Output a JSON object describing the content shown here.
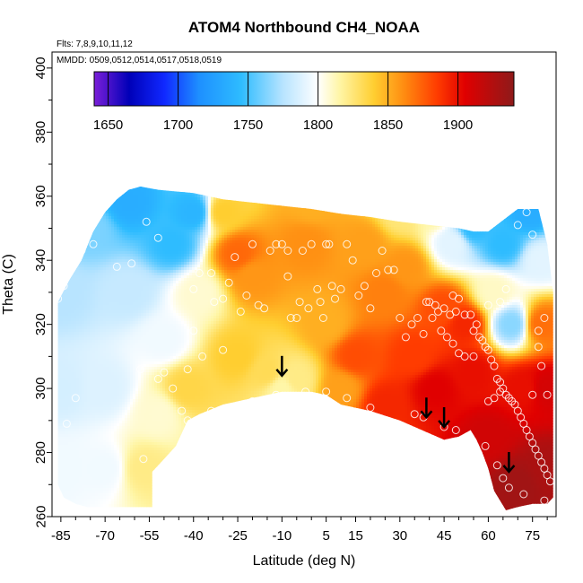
{
  "chart_data": {
    "type": "heatmap",
    "title": "ATOM4 Northbound CH4_NOAA",
    "annotations": {
      "flights": "Flts: 7,8,9,10,11,12",
      "dates": "MMDD: 0509,0512,0514,0517,0518,0519"
    },
    "xlabel": "Latitude (deg N)",
    "ylabel": "Theta (C)",
    "xlim": [
      -88,
      83
    ],
    "ylim": [
      260,
      405
    ],
    "xticks": [
      -85,
      -70,
      -55,
      -40,
      -25,
      -10,
      5,
      15,
      30,
      45,
      60,
      75
    ],
    "yticks": [
      260,
      280,
      300,
      320,
      340,
      360,
      380,
      400
    ],
    "colorbar": {
      "range": [
        1640,
        1940
      ],
      "ticks": [
        1650,
        1700,
        1750,
        1800,
        1850,
        1900
      ],
      "stops": [
        {
          "v": 1640,
          "color": "#7b1fd8"
        },
        {
          "v": 1665,
          "color": "#0000b8"
        },
        {
          "v": 1690,
          "color": "#1028ff"
        },
        {
          "v": 1715,
          "color": "#1e90ff"
        },
        {
          "v": 1745,
          "color": "#2ebcff"
        },
        {
          "v": 1775,
          "color": "#b8e4ff"
        },
        {
          "v": 1800,
          "color": "#ffffff"
        },
        {
          "v": 1815,
          "color": "#fff6a8"
        },
        {
          "v": 1840,
          "color": "#ffce30"
        },
        {
          "v": 1862,
          "color": "#ff8a10"
        },
        {
          "v": 1885,
          "color": "#ff3c00"
        },
        {
          "v": 1905,
          "color": "#e00000"
        },
        {
          "v": 1940,
          "color": "#8e1a1a"
        }
      ]
    },
    "field_anchors": [
      {
        "lat": -85,
        "theta": 275,
        "ch4": 1795
      },
      {
        "lat": -85,
        "theta": 300,
        "ch4": 1785
      },
      {
        "lat": -85,
        "theta": 330,
        "ch4": 1775
      },
      {
        "lat": -75,
        "theta": 350,
        "ch4": 1762
      },
      {
        "lat": -62,
        "theta": 358,
        "ch4": 1735
      },
      {
        "lat": -62,
        "theta": 330,
        "ch4": 1780
      },
      {
        "lat": -70,
        "theta": 300,
        "ch4": 1788
      },
      {
        "lat": -70,
        "theta": 275,
        "ch4": 1795
      },
      {
        "lat": -57,
        "theta": 275,
        "ch4": 1822
      },
      {
        "lat": -52,
        "theta": 292,
        "ch4": 1808
      },
      {
        "lat": -50,
        "theta": 315,
        "ch4": 1795
      },
      {
        "lat": -47,
        "theta": 345,
        "ch4": 1745
      },
      {
        "lat": -40,
        "theta": 355,
        "ch4": 1740
      },
      {
        "lat": -42,
        "theta": 300,
        "ch4": 1835
      },
      {
        "lat": -38,
        "theta": 330,
        "ch4": 1808
      },
      {
        "lat": -30,
        "theta": 355,
        "ch4": 1840
      },
      {
        "lat": -25,
        "theta": 342,
        "ch4": 1872
      },
      {
        "lat": -20,
        "theta": 335,
        "ch4": 1858
      },
      {
        "lat": -25,
        "theta": 310,
        "ch4": 1840
      },
      {
        "lat": -15,
        "theta": 305,
        "ch4": 1832
      },
      {
        "lat": -10,
        "theta": 300,
        "ch4": 1815
      },
      {
        "lat": -5,
        "theta": 303,
        "ch4": 1822
      },
      {
        "lat": -2,
        "theta": 345,
        "ch4": 1860
      },
      {
        "lat": 0,
        "theta": 358,
        "ch4": 1850
      },
      {
        "lat": 5,
        "theta": 320,
        "ch4": 1850
      },
      {
        "lat": 10,
        "theta": 300,
        "ch4": 1855
      },
      {
        "lat": 15,
        "theta": 310,
        "ch4": 1880
      },
      {
        "lat": 18,
        "theta": 345,
        "ch4": 1855
      },
      {
        "lat": 25,
        "theta": 330,
        "ch4": 1865
      },
      {
        "lat": 25,
        "theta": 295,
        "ch4": 1892
      },
      {
        "lat": 30,
        "theta": 355,
        "ch4": 1825
      },
      {
        "lat": 32,
        "theta": 338,
        "ch4": 1858
      },
      {
        "lat": 35,
        "theta": 310,
        "ch4": 1885
      },
      {
        "lat": 42,
        "theta": 300,
        "ch4": 1905
      },
      {
        "lat": 45,
        "theta": 325,
        "ch4": 1880
      },
      {
        "lat": 42,
        "theta": 355,
        "ch4": 1815
      },
      {
        "lat": 48,
        "theta": 345,
        "ch4": 1790
      },
      {
        "lat": 52,
        "theta": 320,
        "ch4": 1892
      },
      {
        "lat": 55,
        "theta": 350,
        "ch4": 1745
      },
      {
        "lat": 55,
        "theta": 305,
        "ch4": 1900
      },
      {
        "lat": 60,
        "theta": 285,
        "ch4": 1912
      },
      {
        "lat": 62,
        "theta": 330,
        "ch4": 1810
      },
      {
        "lat": 65,
        "theta": 345,
        "ch4": 1745
      },
      {
        "lat": 68,
        "theta": 320,
        "ch4": 1765
      },
      {
        "lat": 72,
        "theta": 300,
        "ch4": 1900
      },
      {
        "lat": 70,
        "theta": 270,
        "ch4": 1932
      },
      {
        "lat": 78,
        "theta": 340,
        "ch4": 1790
      },
      {
        "lat": 78,
        "theta": 320,
        "ch4": 1870
      },
      {
        "lat": 80,
        "theta": 300,
        "ch4": 1910
      },
      {
        "lat": 80,
        "theta": 275,
        "ch4": 1928
      },
      {
        "lat": 74,
        "theta": 355,
        "ch4": 1735
      }
    ],
    "envelope": {
      "top": [
        [
          -86,
          327
        ],
        [
          -82,
          334
        ],
        [
          -78,
          340
        ],
        [
          -74,
          349
        ],
        [
          -70,
          355
        ],
        [
          -66,
          359
        ],
        [
          -62,
          362
        ],
        [
          -58,
          363
        ],
        [
          -52,
          362
        ],
        [
          -40,
          361
        ],
        [
          -30,
          359
        ],
        [
          -20,
          358
        ],
        [
          -10,
          357
        ],
        [
          0,
          356
        ],
        [
          10,
          354.5
        ],
        [
          20,
          353.5
        ],
        [
          30,
          352
        ],
        [
          40,
          351
        ],
        [
          50,
          350
        ],
        [
          55,
          349
        ],
        [
          60,
          349
        ],
        [
          70,
          356
        ],
        [
          77,
          356
        ],
        [
          80,
          345
        ],
        [
          82,
          330
        ]
      ],
      "bottom": [
        [
          -86,
          270
        ],
        [
          -84,
          266
        ],
        [
          -80,
          264
        ],
        [
          -76,
          263
        ],
        [
          -70,
          263
        ],
        [
          -60,
          263
        ],
        [
          -54,
          263
        ],
        [
          -54,
          274
        ],
        [
          -50,
          278
        ],
        [
          -46,
          282
        ],
        [
          -42,
          290
        ],
        [
          -38,
          292
        ],
        [
          -30,
          295
        ],
        [
          -20,
          297
        ],
        [
          -10,
          299
        ],
        [
          0,
          299
        ],
        [
          5,
          298
        ],
        [
          10,
          295
        ],
        [
          20,
          293
        ],
        [
          30,
          290
        ],
        [
          40,
          286
        ],
        [
          45,
          284
        ],
        [
          50,
          285
        ],
        [
          54,
          287
        ],
        [
          56,
          284
        ],
        [
          58,
          280
        ],
        [
          60,
          275
        ],
        [
          62,
          268
        ],
        [
          66,
          262
        ],
        [
          70,
          263
        ],
        [
          75,
          264
        ],
        [
          80,
          264
        ],
        [
          82,
          266
        ]
      ]
    },
    "arrows": [
      {
        "lat": -10,
        "theta": 304
      },
      {
        "lat": 39,
        "theta": 291
      },
      {
        "lat": 45,
        "theta": 288
      },
      {
        "lat": 67,
        "theta": 274
      }
    ],
    "observations": [
      [
        -86,
        328
      ],
      [
        -84,
        332
      ],
      [
        -78,
        343
      ],
      [
        -74,
        345
      ],
      [
        -80,
        297
      ],
      [
        -83,
        289
      ],
      [
        -66,
        338
      ],
      [
        -61,
        339
      ],
      [
        -56,
        352
      ],
      [
        -52,
        347
      ],
      [
        -58,
        306
      ],
      [
        -57,
        278
      ],
      [
        -50,
        305
      ],
      [
        -47,
        300
      ],
      [
        -44,
        293
      ],
      [
        -42,
        306
      ],
      [
        -40,
        331
      ],
      [
        -40,
        318
      ],
      [
        -38,
        336
      ],
      [
        -37,
        310
      ],
      [
        -34,
        336
      ],
      [
        -33,
        327
      ],
      [
        -30,
        328
      ],
      [
        -30,
        312
      ],
      [
        -28,
        333
      ],
      [
        -26,
        341
      ],
      [
        -24,
        324
      ],
      [
        -22,
        329
      ],
      [
        -20,
        345
      ],
      [
        -18,
        326
      ],
      [
        -16,
        325
      ],
      [
        -14,
        343
      ],
      [
        -12,
        345
      ],
      [
        -10,
        345
      ],
      [
        -8,
        343
      ],
      [
        -8,
        335
      ],
      [
        -7,
        322
      ],
      [
        -5,
        322
      ],
      [
        -4,
        327
      ],
      [
        -3,
        343
      ],
      [
        -1,
        325
      ],
      [
        0,
        345
      ],
      [
        2,
        331
      ],
      [
        3,
        327
      ],
      [
        4,
        322
      ],
      [
        5,
        345
      ],
      [
        6,
        345
      ],
      [
        7,
        332
      ],
      [
        8,
        328
      ],
      [
        10,
        331
      ],
      [
        12,
        345
      ],
      [
        14,
        340
      ],
      [
        16,
        329
      ],
      [
        18,
        332
      ],
      [
        20,
        325
      ],
      [
        22,
        336
      ],
      [
        24,
        343
      ],
      [
        26,
        337
      ],
      [
        28,
        337
      ],
      [
        30,
        322
      ],
      [
        32,
        316
      ],
      [
        34,
        320
      ],
      [
        36,
        322
      ],
      [
        38,
        317
      ],
      [
        39,
        327
      ],
      [
        40,
        327
      ],
      [
        42,
        326
      ],
      [
        43,
        324
      ],
      [
        45,
        325
      ],
      [
        47,
        323
      ],
      [
        48,
        329
      ],
      [
        49,
        324
      ],
      [
        50,
        328
      ],
      [
        52,
        323
      ],
      [
        54,
        323
      ],
      [
        55,
        318
      ],
      [
        56,
        320
      ],
      [
        57,
        316
      ],
      [
        58,
        315
      ],
      [
        59,
        313
      ],
      [
        60,
        312
      ],
      [
        61,
        309
      ],
      [
        62,
        307
      ],
      [
        63,
        303
      ],
      [
        64,
        302
      ],
      [
        65,
        300
      ],
      [
        66,
        298
      ],
      [
        67,
        297
      ],
      [
        68,
        296
      ],
      [
        69,
        295
      ],
      [
        70,
        293
      ],
      [
        71,
        291
      ],
      [
        72,
        289
      ],
      [
        73,
        287
      ],
      [
        74,
        285
      ],
      [
        75,
        283
      ],
      [
        76,
        281
      ],
      [
        77,
        279
      ],
      [
        78,
        277
      ],
      [
        79,
        275
      ],
      [
        80,
        273
      ],
      [
        81,
        271
      ],
      [
        60,
        296
      ],
      [
        62,
        297
      ],
      [
        64,
        299
      ],
      [
        75,
        298
      ],
      [
        80,
        298
      ],
      [
        78,
        307
      ],
      [
        77,
        313
      ],
      [
        77,
        318
      ],
      [
        79,
        322
      ],
      [
        75,
        348
      ],
      [
        70,
        351
      ],
      [
        73,
        355
      ],
      [
        66,
        331
      ],
      [
        64,
        327
      ],
      [
        60,
        326
      ],
      [
        55,
        310
      ],
      [
        52,
        310
      ],
      [
        50,
        311
      ],
      [
        48,
        314
      ],
      [
        46,
        316
      ],
      [
        44,
        318
      ],
      [
        41,
        322
      ],
      [
        63,
        276
      ],
      [
        65,
        272
      ],
      [
        67,
        269
      ],
      [
        72,
        267
      ],
      [
        79,
        265
      ],
      [
        59,
        282
      ],
      [
        49,
        287
      ],
      [
        45,
        288
      ],
      [
        38,
        291
      ],
      [
        35,
        292
      ],
      [
        20,
        294
      ],
      [
        12,
        297
      ],
      [
        5,
        299
      ],
      [
        -2,
        299
      ],
      [
        -12,
        298
      ],
      [
        -20,
        296
      ],
      [
        -26,
        294
      ],
      [
        -34,
        293
      ],
      [
        -42,
        290
      ],
      [
        -52,
        303
      ]
    ]
  }
}
